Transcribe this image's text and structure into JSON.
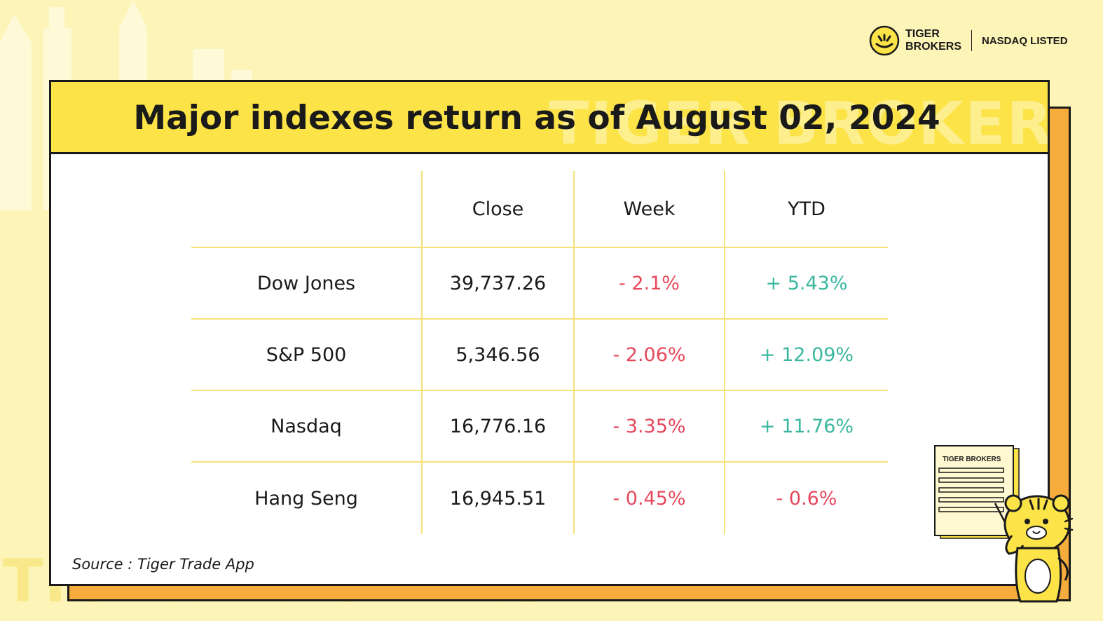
{
  "watermark": "TIGER BROKERS",
  "brand": {
    "name_line1": "TIGER",
    "name_line2": "BROKERS",
    "listed": "NASDAQ LISTED"
  },
  "title": "Major indexes return as of August 02, 2024",
  "table": {
    "headers": [
      "",
      "Close",
      "Week",
      "YTD"
    ],
    "rows": [
      {
        "index": "Dow Jones",
        "close": "39,737.26",
        "week": "- 2.1%",
        "ytd": "+ 5.43%"
      },
      {
        "index": "S&P 500",
        "close": "5,346.56",
        "week": "- 2.06%",
        "ytd": "+ 12.09%"
      },
      {
        "index": "Nasdaq",
        "close": "16,776.16",
        "week": "- 3.35%",
        "ytd": "+ 11.76%"
      },
      {
        "index": "Hang Seng",
        "close": "16,945.51",
        "week": "- 0.45%",
        "ytd": "- 0.6%"
      }
    ]
  },
  "source": "Source :  Tiger Trade App",
  "mascot": {
    "document_label": "TIGER BROKERS"
  },
  "colors": {
    "background": "#fdf4b8",
    "header": "#fbe348",
    "accent_orange": "#f5ac3c",
    "negative": "#e5485c",
    "positive": "#3bb7a0",
    "grid": "#f5e27a"
  }
}
